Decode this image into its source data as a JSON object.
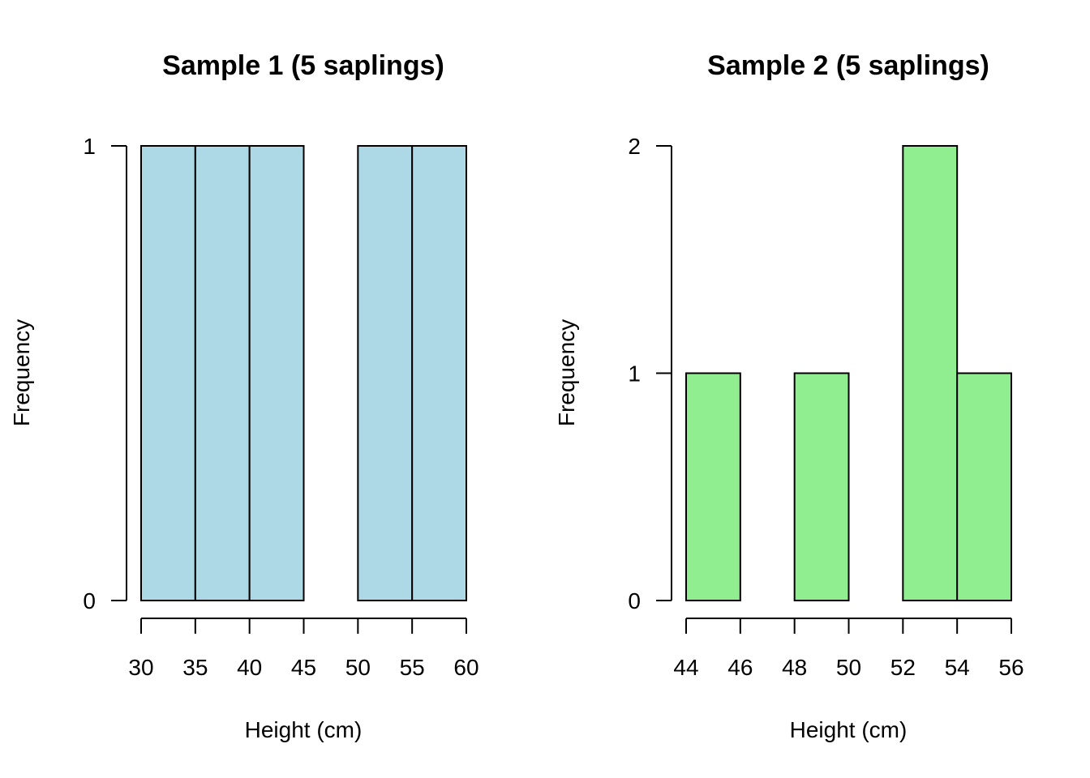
{
  "chart_data": [
    {
      "type": "bar",
      "title": "Sample 1 (5 saplings)",
      "xlabel": "Height (cm)",
      "ylabel": "Frequency",
      "bin_edges": [
        30,
        35,
        40,
        45,
        50,
        55,
        60
      ],
      "counts": [
        1,
        1,
        1,
        0,
        1,
        1
      ],
      "xticks": [
        "30",
        "35",
        "40",
        "45",
        "50",
        "55",
        "60"
      ],
      "yticks": [
        "0",
        "1"
      ],
      "xlim": [
        30,
        60
      ],
      "ylim": [
        0,
        1
      ],
      "bar_color": "#add8e6",
      "grid": false
    },
    {
      "type": "bar",
      "title": "Sample 2 (5 saplings)",
      "xlabel": "Height (cm)",
      "ylabel": "Frequency",
      "bin_edges": [
        44,
        46,
        48,
        50,
        52,
        54,
        56
      ],
      "counts": [
        1,
        0,
        1,
        0,
        2,
        1
      ],
      "xticks": [
        "44",
        "46",
        "48",
        "50",
        "52",
        "54",
        "56"
      ],
      "yticks": [
        "0",
        "1",
        "2"
      ],
      "xlim": [
        44,
        56
      ],
      "ylim": [
        0,
        2
      ],
      "bar_color": "#90ee90",
      "grid": false
    }
  ]
}
